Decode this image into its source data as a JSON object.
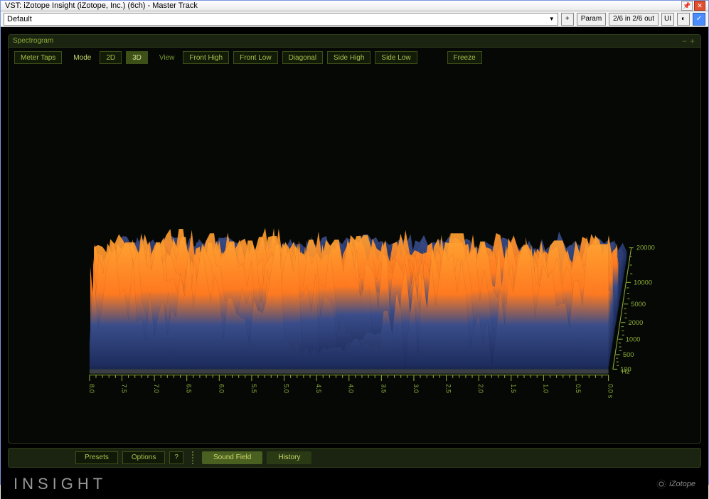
{
  "window": {
    "title": "VST: iZotope Insight (iZotope, Inc.) (6ch) - Master Track"
  },
  "host_toolbar": {
    "preset": "Default",
    "plus": "+",
    "param": "Param",
    "routing": "2/6 in 2/6 out",
    "ui": "UI"
  },
  "panel": {
    "title": "Spectrogram",
    "toolbar": {
      "meter_taps": "Meter Taps",
      "mode_label": "Mode",
      "mode_2d": "2D",
      "mode_3d": "3D",
      "view_label": "View",
      "front_high": "Front High",
      "front_low": "Front Low",
      "diagonal": "Diagonal",
      "side_high": "Side High",
      "side_low": "Side Low",
      "freeze": "Freeze"
    }
  },
  "spectrogram": {
    "type": "3d-spectrogram",
    "freq_axis": {
      "labels": [
        "20000",
        "10000",
        "5000",
        "2000",
        "1000",
        "500",
        "100"
      ],
      "unit": "Hz",
      "color": "#8fae3a",
      "fontsize": 9
    },
    "time_axis": {
      "labels": [
        "8.0",
        "7.5",
        "7.0",
        "6.5",
        "6.0",
        "5.5",
        "5.0",
        "4.5",
        "4.0",
        "3.5",
        "3.0",
        "2.5",
        "2.0",
        "1.5",
        "1.0",
        "0.5",
        "0.0 s"
      ],
      "color": "#8fae3a",
      "fontsize": 9
    },
    "colors": {
      "background": "#000000",
      "grid": "#5d7030",
      "low_amp": "#1b2a5a",
      "mid_amp": "#3a4d8a",
      "high_amp": "#ff7a20",
      "peak": "#ffa030"
    }
  },
  "bottom_bar": {
    "presets": "Presets",
    "options": "Options",
    "help": "?",
    "sound_field": "Sound Field",
    "history": "History"
  },
  "brand": {
    "product": "INSIGHT",
    "company": "iZotope"
  }
}
